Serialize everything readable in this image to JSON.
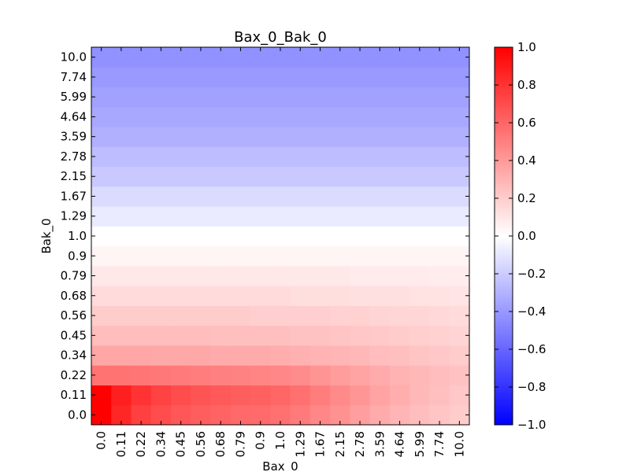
{
  "chart_data": {
    "type": "heatmap",
    "title": "Bax_0_Bak_0",
    "xlabel": "Bax_0",
    "ylabel": "Bak_0",
    "x_ticks": [
      "0.0",
      "0.11",
      "0.22",
      "0.34",
      "0.45",
      "0.56",
      "0.68",
      "0.79",
      "0.9",
      "1.0",
      "1.29",
      "1.67",
      "2.15",
      "2.78",
      "3.59",
      "4.64",
      "5.99",
      "7.74",
      "10.0"
    ],
    "y_ticks": [
      "0.0",
      "0.11",
      "0.22",
      "0.34",
      "0.45",
      "0.56",
      "0.68",
      "0.79",
      "0.9",
      "1.0",
      "1.29",
      "1.67",
      "2.15",
      "2.78",
      "3.59",
      "4.64",
      "5.99",
      "7.74",
      "10.0"
    ],
    "colorbar": {
      "colormap": "bwr",
      "vmin": -1.0,
      "vmax": 1.0,
      "tick_labels": [
        "1.0",
        "0.8",
        "0.6",
        "0.4",
        "0.2",
        "0.0",
        "−0.2",
        "−0.4",
        "−0.6",
        "−0.8",
        "−1.0"
      ],
      "tick_values": [
        1.0,
        0.8,
        0.6,
        0.4,
        0.2,
        0.0,
        -0.2,
        -0.4,
        -0.6,
        -0.8,
        -1.0
      ]
    },
    "values": [
      [
        1.0,
        0.85,
        0.75,
        0.7,
        0.66,
        0.63,
        0.61,
        0.59,
        0.58,
        0.56,
        0.52,
        0.47,
        0.43,
        0.38,
        0.33,
        0.29,
        0.26,
        0.23,
        0.2
      ],
      [
        1.0,
        0.88,
        0.8,
        0.74,
        0.7,
        0.67,
        0.65,
        0.63,
        0.62,
        0.6,
        0.56,
        0.51,
        0.46,
        0.41,
        0.36,
        0.32,
        0.28,
        0.25,
        0.22
      ],
      [
        0.55,
        0.55,
        0.54,
        0.53,
        0.52,
        0.51,
        0.5,
        0.49,
        0.48,
        0.47,
        0.45,
        0.42,
        0.39,
        0.36,
        0.33,
        0.3,
        0.28,
        0.26,
        0.24
      ],
      [
        0.35,
        0.35,
        0.35,
        0.34,
        0.34,
        0.34,
        0.33,
        0.33,
        0.33,
        0.32,
        0.31,
        0.3,
        0.29,
        0.28,
        0.26,
        0.25,
        0.23,
        0.22,
        0.2
      ],
      [
        0.26,
        0.26,
        0.26,
        0.26,
        0.26,
        0.26,
        0.25,
        0.25,
        0.25,
        0.25,
        0.24,
        0.24,
        0.23,
        0.22,
        0.21,
        0.2,
        0.19,
        0.18,
        0.17
      ],
      [
        0.2,
        0.2,
        0.2,
        0.2,
        0.2,
        0.2,
        0.2,
        0.2,
        0.19,
        0.19,
        0.19,
        0.19,
        0.18,
        0.18,
        0.17,
        0.16,
        0.16,
        0.15,
        0.14
      ],
      [
        0.14,
        0.14,
        0.14,
        0.14,
        0.14,
        0.14,
        0.14,
        0.14,
        0.14,
        0.14,
        0.13,
        0.13,
        0.13,
        0.12,
        0.12,
        0.12,
        0.11,
        0.11,
        0.1
      ],
      [
        0.09,
        0.09,
        0.09,
        0.09,
        0.09,
        0.09,
        0.09,
        0.09,
        0.09,
        0.09,
        0.09,
        0.09,
        0.09,
        0.08,
        0.08,
        0.08,
        0.08,
        0.07,
        0.07
      ],
      [
        0.04,
        0.04,
        0.04,
        0.04,
        0.04,
        0.04,
        0.04,
        0.04,
        0.04,
        0.04,
        0.04,
        0.04,
        0.04,
        0.04,
        0.04,
        0.04,
        0.04,
        0.04,
        0.04
      ],
      [
        0.0,
        0.0,
        0.0,
        0.0,
        0.0,
        0.0,
        0.0,
        0.0,
        0.0,
        0.0,
        0.0,
        0.0,
        0.0,
        0.0,
        0.0,
        0.0,
        0.0,
        0.0,
        0.0
      ],
      [
        -0.08,
        -0.08,
        -0.08,
        -0.08,
        -0.08,
        -0.08,
        -0.08,
        -0.08,
        -0.08,
        -0.08,
        -0.08,
        -0.08,
        -0.08,
        -0.08,
        -0.08,
        -0.08,
        -0.08,
        -0.08,
        -0.08
      ],
      [
        -0.14,
        -0.14,
        -0.14,
        -0.14,
        -0.14,
        -0.14,
        -0.14,
        -0.14,
        -0.14,
        -0.14,
        -0.14,
        -0.14,
        -0.14,
        -0.14,
        -0.14,
        -0.14,
        -0.14,
        -0.14,
        -0.14
      ],
      [
        -0.21,
        -0.21,
        -0.21,
        -0.21,
        -0.21,
        -0.21,
        -0.21,
        -0.21,
        -0.21,
        -0.21,
        -0.21,
        -0.21,
        -0.21,
        -0.21,
        -0.21,
        -0.21,
        -0.21,
        -0.21,
        -0.21
      ],
      [
        -0.26,
        -0.26,
        -0.26,
        -0.26,
        -0.26,
        -0.26,
        -0.26,
        -0.26,
        -0.26,
        -0.26,
        -0.26,
        -0.26,
        -0.26,
        -0.26,
        -0.26,
        -0.26,
        -0.26,
        -0.26,
        -0.26
      ],
      [
        -0.31,
        -0.31,
        -0.31,
        -0.31,
        -0.31,
        -0.31,
        -0.31,
        -0.31,
        -0.31,
        -0.31,
        -0.31,
        -0.31,
        -0.31,
        -0.31,
        -0.31,
        -0.31,
        -0.31,
        -0.31,
        -0.31
      ],
      [
        -0.34,
        -0.34,
        -0.34,
        -0.34,
        -0.34,
        -0.34,
        -0.34,
        -0.34,
        -0.34,
        -0.34,
        -0.34,
        -0.34,
        -0.34,
        -0.34,
        -0.34,
        -0.34,
        -0.34,
        -0.34,
        -0.34
      ],
      [
        -0.37,
        -0.37,
        -0.37,
        -0.37,
        -0.37,
        -0.37,
        -0.37,
        -0.37,
        -0.37,
        -0.37,
        -0.37,
        -0.37,
        -0.37,
        -0.37,
        -0.37,
        -0.37,
        -0.37,
        -0.37,
        -0.37
      ],
      [
        -0.4,
        -0.4,
        -0.4,
        -0.4,
        -0.4,
        -0.4,
        -0.4,
        -0.4,
        -0.4,
        -0.4,
        -0.4,
        -0.4,
        -0.4,
        -0.4,
        -0.4,
        -0.4,
        -0.4,
        -0.4,
        -0.4
      ],
      [
        -0.43,
        -0.43,
        -0.43,
        -0.43,
        -0.43,
        -0.43,
        -0.43,
        -0.43,
        -0.43,
        -0.43,
        -0.43,
        -0.43,
        -0.43,
        -0.43,
        -0.43,
        -0.43,
        -0.43,
        -0.43,
        -0.43
      ]
    ]
  }
}
